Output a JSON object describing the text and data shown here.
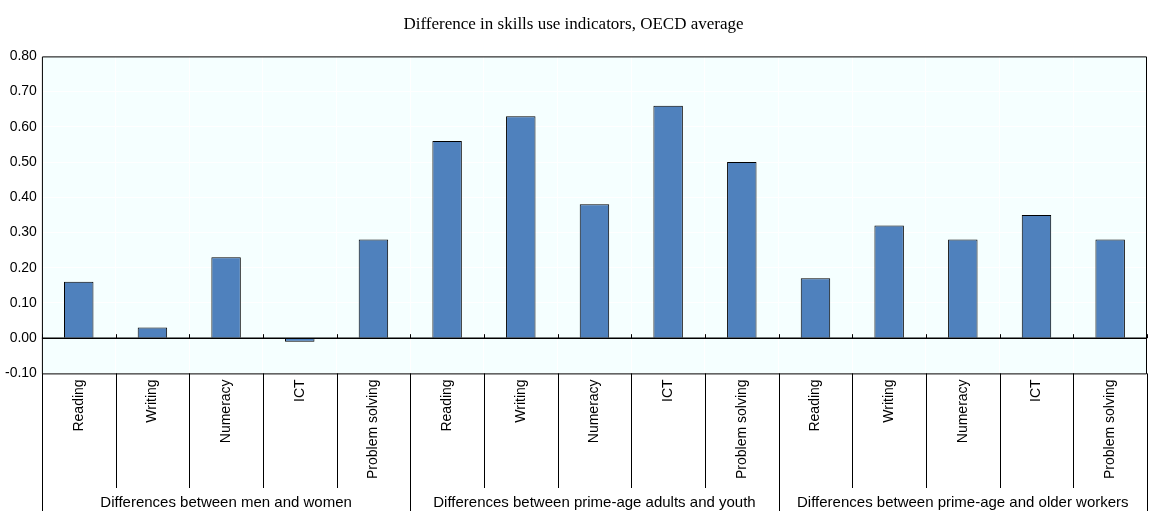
{
  "chart_data": {
    "type": "bar",
    "title": "Difference in skills use indicators, OECD average",
    "categories": [
      "Reading",
      "Writing",
      "Numeracy",
      "ICT",
      "Problem solving",
      "Reading",
      "Writing",
      "Numeracy",
      "ICT",
      "Problem solving",
      "Reading",
      "Writing",
      "Numeracy",
      "ICT",
      "Problem solving"
    ],
    "values": [
      0.16,
      0.03,
      0.23,
      -0.01,
      0.28,
      0.56,
      0.63,
      0.38,
      0.66,
      0.5,
      0.17,
      0.32,
      0.28,
      0.35,
      0.28
    ],
    "color": "#4f81bd",
    "ylim": [
      -0.1,
      0.8
    ],
    "yticks": [
      {
        "value": -0.1,
        "label": "-0.10"
      },
      {
        "value": 0,
        "label": "0.00"
      },
      {
        "value": 0.1,
        "label": "0.10"
      },
      {
        "value": 0.2,
        "label": "0.20"
      },
      {
        "value": 0.3,
        "label": "0.30"
      },
      {
        "value": 0.4,
        "label": "0.40"
      },
      {
        "value": 0.5,
        "label": "0.50"
      },
      {
        "value": 0.6,
        "label": "0.60"
      },
      {
        "value": 0.7,
        "label": "0.70"
      },
      {
        "value": 0.8,
        "label": "0.80"
      }
    ],
    "grid": true,
    "annotations": [
      "Differences between men and women",
      "Differences between prime-age adults and youth",
      "Differences between prime-age and older workers"
    ]
  }
}
